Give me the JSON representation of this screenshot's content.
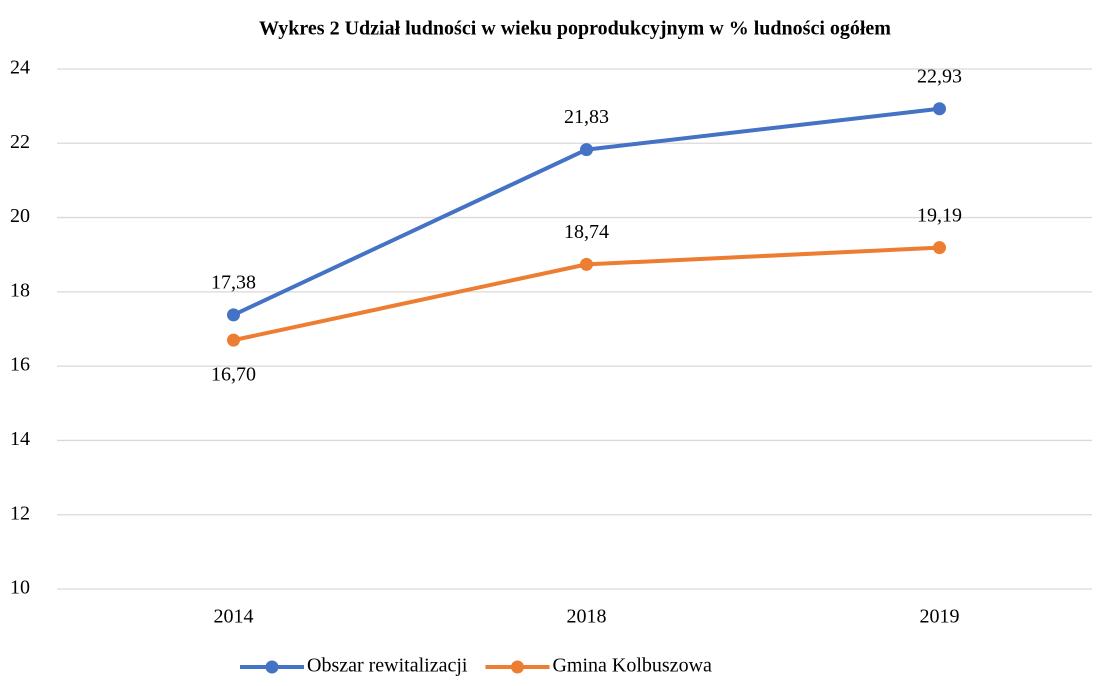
{
  "chart_data": {
    "type": "line",
    "title": "Wykres 2 Udział ludności w wieku poprodukcyjnym w % ludności ogółem",
    "categories": [
      "2014",
      "2018",
      "2019"
    ],
    "series": [
      {
        "name": "Obszar rewitalizacji",
        "color": "#4472c4",
        "values": [
          17.38,
          21.83,
          22.93
        ],
        "value_labels": [
          "17,38",
          "21,83",
          "22,93"
        ]
      },
      {
        "name": "Gmina Kolbuszowa",
        "color": "#ed7d31",
        "values": [
          16.7,
          18.74,
          19.19
        ],
        "value_labels": [
          "16,70",
          "18,74",
          "19,19"
        ]
      }
    ],
    "ylim": [
      10,
      24
    ],
    "yticks": [
      10,
      12,
      14,
      16,
      18,
      20,
      22,
      24
    ],
    "grid": true,
    "legend": "bottom"
  }
}
